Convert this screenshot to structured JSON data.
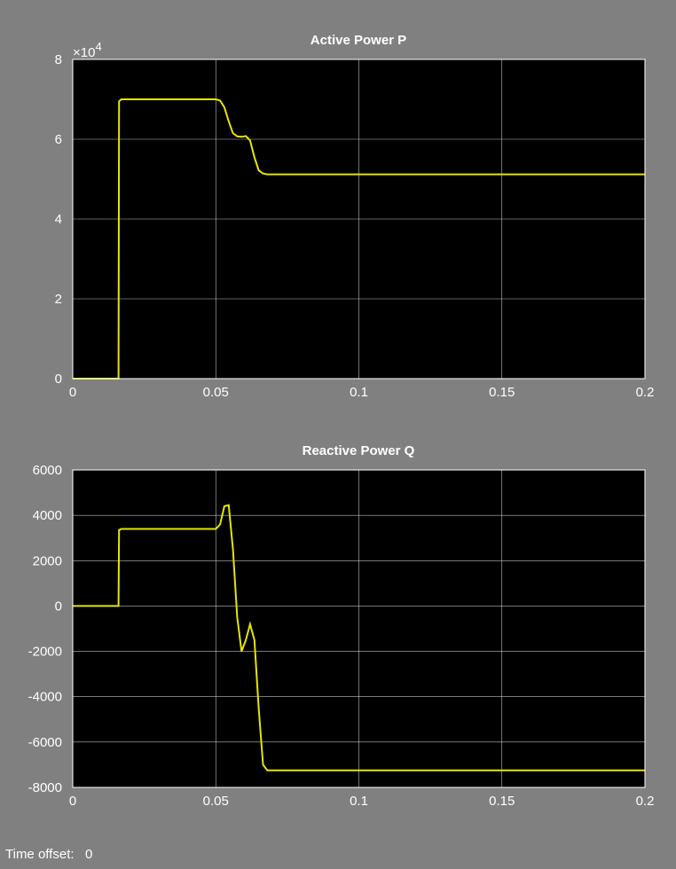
{
  "window": {
    "time_offset_label": "Time offset:",
    "time_offset_value": "0"
  },
  "colors": {
    "background": "#808080",
    "plot_bg": "#000000",
    "grid": "#ffffff",
    "line": "#e6e600"
  },
  "chart_data": [
    {
      "type": "line",
      "title": "Active Power P",
      "xlabel": "",
      "ylabel": "",
      "xlim": [
        0,
        0.2
      ],
      "ylim": [
        0,
        8
      ],
      "y_exponent_label": "×10",
      "y_exponent_power": "4",
      "x_ticks": [
        "0",
        "0.05",
        "0.1",
        "0.15",
        "0.2"
      ],
      "y_ticks": [
        "0",
        "2",
        "4",
        "6",
        "8"
      ],
      "grid": true,
      "series": [
        {
          "x": [
            0,
            0.016,
            0.0162,
            0.017,
            0.05,
            0.0515,
            0.053,
            0.0545,
            0.056,
            0.0575,
            0.059,
            0.0605,
            0.062,
            0.0635,
            0.065,
            0.0665,
            0.068,
            0.1,
            0.15,
            0.2
          ],
          "y": [
            0,
            0,
            6.95,
            7.0,
            7.0,
            6.97,
            6.8,
            6.45,
            6.15,
            6.07,
            6.06,
            6.08,
            5.97,
            5.55,
            5.22,
            5.14,
            5.12,
            5.12,
            5.12,
            5.12
          ]
        }
      ]
    },
    {
      "type": "line",
      "title": "Reactive Power Q",
      "xlabel": "",
      "ylabel": "",
      "xlim": [
        0,
        0.2
      ],
      "ylim": [
        -8000,
        6000
      ],
      "x_ticks": [
        "0",
        "0.05",
        "0.1",
        "0.15",
        "0.2"
      ],
      "y_ticks": [
        "-8000",
        "-6000",
        "-4000",
        "-2000",
        "0",
        "2000",
        "4000",
        "6000"
      ],
      "grid": true,
      "series": [
        {
          "x": [
            0,
            0.016,
            0.0162,
            0.017,
            0.05,
            0.0515,
            0.053,
            0.0545,
            0.056,
            0.0575,
            0.059,
            0.0605,
            0.062,
            0.0635,
            0.065,
            0.0665,
            0.068,
            0.1,
            0.15,
            0.2
          ],
          "y": [
            0,
            0,
            3350,
            3400,
            3400,
            3600,
            4400,
            4450,
            2500,
            -500,
            -2000,
            -1500,
            -800,
            -1500,
            -4500,
            -7000,
            -7250,
            -7250,
            -7250,
            -7250
          ]
        }
      ]
    }
  ]
}
